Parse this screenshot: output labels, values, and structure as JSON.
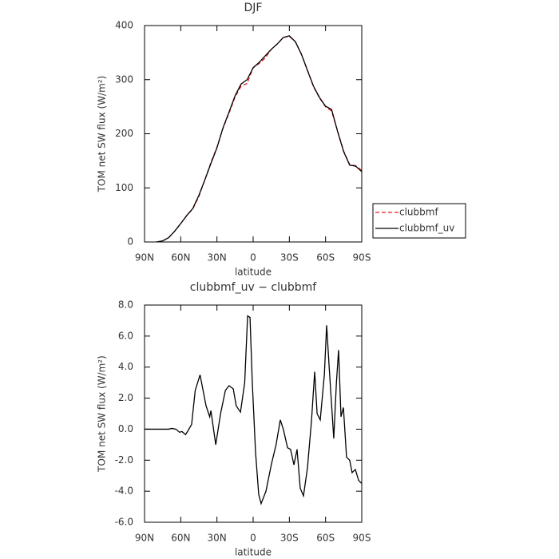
{
  "chart_data": [
    {
      "type": "line",
      "title": "DJF",
      "xlabel": "latitude",
      "ylabel": "TOM net SW flux (W/m²)",
      "x": [
        80,
        75,
        70,
        65,
        60,
        55,
        50,
        45,
        40,
        35,
        30,
        25,
        20,
        15,
        10,
        5,
        0,
        -5,
        -10,
        -15,
        -20,
        -25,
        -30,
        -35,
        -40,
        -45,
        -50,
        -55,
        -60,
        -65,
        -70,
        -75,
        -80,
        -85,
        -90
      ],
      "series": [
        {
          "name": "clubbmf",
          "color": "#e41a1c",
          "style": "dashed",
          "values": [
            0,
            2,
            8,
            20,
            34,
            49,
            61,
            84,
            115,
            147,
            175,
            210,
            238,
            268,
            288,
            293,
            322,
            330,
            340,
            356,
            366,
            378,
            380,
            370,
            347,
            318,
            287,
            266,
            250,
            242,
            205,
            168,
            143,
            141,
            132
          ]
        },
        {
          "name": "clubbmf_uv",
          "color": "#000000",
          "style": "solid",
          "values": [
            0,
            2,
            8,
            20,
            34,
            49,
            62,
            86,
            115,
            145,
            174,
            211,
            240,
            270,
            292,
            300,
            322,
            332,
            344,
            356,
            366,
            378,
            381,
            370,
            347,
            317,
            288,
            267,
            251,
            245,
            204,
            167,
            142,
            140,
            130
          ]
        }
      ],
      "xlim": [
        90,
        -90
      ],
      "xticks": [
        {
          "value": 90,
          "label": "90N"
        },
        {
          "value": 60,
          "label": "60N"
        },
        {
          "value": 30,
          "label": "30N"
        },
        0,
        {
          "value": -30,
          "label": "30S"
        },
        {
          "value": -60,
          "label": "60S"
        },
        {
          "value": -90,
          "label": "90S"
        }
      ],
      "ylim": [
        0,
        400
      ],
      "yticks": [
        0,
        100,
        200,
        300,
        400
      ],
      "legend": "right"
    },
    {
      "type": "line",
      "title": "clubbmf_uv − clubbmf",
      "xlabel": "latitude",
      "ylabel": "TOM net SW flux (W/m²)",
      "x": [
        90,
        80,
        70,
        67.5,
        64,
        61,
        59,
        56,
        54,
        51,
        48,
        44,
        39,
        36,
        35,
        31,
        27,
        23,
        20,
        16.5,
        14,
        10.5,
        7,
        4.6,
        2.6,
        0.7,
        -2,
        -4.6,
        -6.6,
        -10.6,
        -15,
        -19,
        -22.5,
        -25,
        -28.5,
        -31,
        -33.8,
        -36.4,
        -39,
        -41.7,
        -45,
        -48.3,
        -51,
        -53,
        -55.6,
        -59,
        -60.9,
        -63,
        -66.8,
        -69,
        -70.8,
        -72.8,
        -74.8,
        -77.4,
        -80,
        -82,
        -84.7,
        -87.4,
        -90
      ],
      "series": [
        {
          "name": "clubbmf_uv − clubbmf",
          "color": "#000000",
          "style": "solid",
          "values": [
            0,
            0,
            0,
            0.05,
            0,
            -0.2,
            -0.15,
            -0.35,
            -0.1,
            0.3,
            2.5,
            3.5,
            1.5,
            0.8,
            1.2,
            -1.0,
            1.0,
            2.5,
            2.8,
            2.6,
            1.5,
            1.1,
            3.0,
            7.3,
            7.2,
            3.0,
            -1.5,
            -4.2,
            -4.8,
            -4.0,
            -2.3,
            -1.0,
            0.6,
            0,
            -1.2,
            -1.3,
            -2.3,
            -1.3,
            -3.8,
            -4.3,
            -2.5,
            0.5,
            3.7,
            1.0,
            0.6,
            3.5,
            6.7,
            4.0,
            -0.6,
            3.0,
            5.1,
            0.8,
            1.4,
            -1.8,
            -2.0,
            -2.8,
            -2.6,
            -3.3,
            -3.5
          ]
        }
      ],
      "xlim": [
        90,
        -90
      ],
      "xticks": [
        {
          "value": 90,
          "label": "90N"
        },
        {
          "value": 60,
          "label": "60N"
        },
        {
          "value": 30,
          "label": "30N"
        },
        0,
        {
          "value": -30,
          "label": "30S"
        },
        {
          "value": -60,
          "label": "60S"
        },
        {
          "value": -90,
          "label": "90S"
        }
      ],
      "ylim": [
        -6,
        8
      ],
      "yticks": [
        {
          "value": -6,
          "label": "-6.0"
        },
        {
          "value": -4,
          "label": "-4.0"
        },
        {
          "value": -2,
          "label": "-2.0"
        },
        {
          "value": 0,
          "label": "0.0"
        },
        {
          "value": 2,
          "label": "2.0"
        },
        {
          "value": 4,
          "label": "4.0"
        },
        {
          "value": 6,
          "label": "6.0"
        },
        {
          "value": 8,
          "label": "8.0"
        }
      ]
    }
  ]
}
